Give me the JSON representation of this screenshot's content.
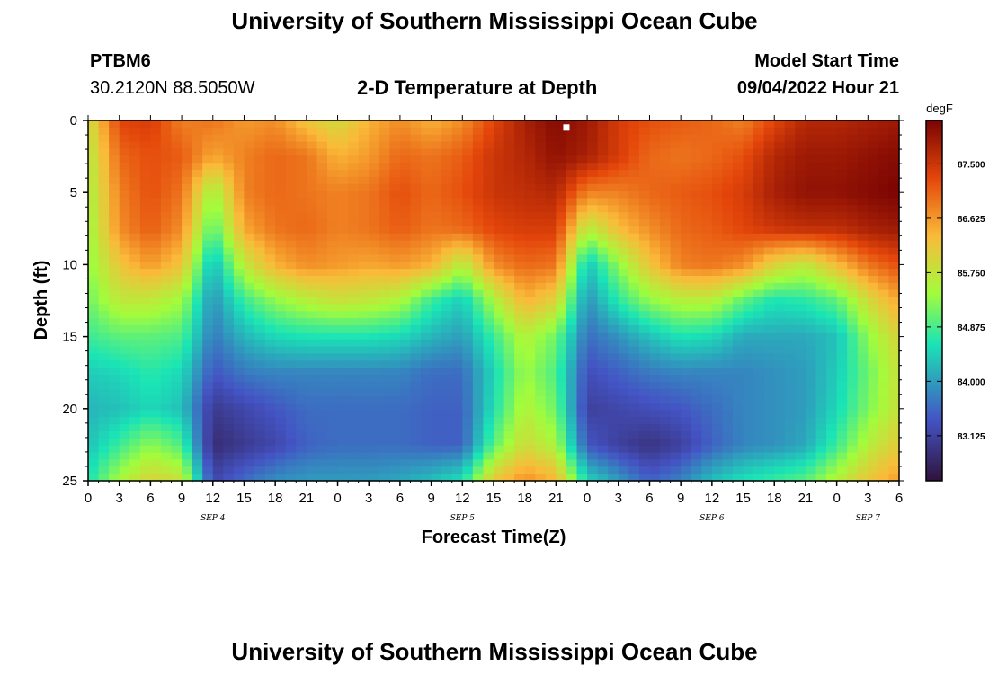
{
  "page": {
    "title": "University of Southern Mississippi Ocean Cube",
    "bottom_title": "University of Southern Mississippi Ocean Cube"
  },
  "station": {
    "id": "PTBM6",
    "coords": "30.2120N  88.5050W"
  },
  "chart_title": "2-D Temperature at Depth",
  "model": {
    "label": "Model Start Time",
    "value": "09/04/2022 Hour 21"
  },
  "colorbar": {
    "unit": "degF",
    "ticks": [
      "87.500",
      "86.625",
      "85.750",
      "84.875",
      "84.000",
      "83.125"
    ],
    "colors": {
      "dark_blue": "#30123b",
      "blue": "#4454c4",
      "cyan": "#1ae4b6",
      "green": "#a2fc3c",
      "yellow": "#faba39",
      "orange": "#e4460a",
      "dark_red": "#7a0403"
    }
  },
  "chart_data": {
    "type": "heatmap",
    "title": "2-D Temperature at Depth",
    "xlabel": "Forecast Time(Z)",
    "ylabel": "Depth (ft)",
    "unit": "degF",
    "xlim": [
      0,
      78
    ],
    "ylim": [
      0,
      25
    ],
    "value_range": [
      82.4,
      88.2
    ],
    "y_ticks": [
      "0",
      "5",
      "10",
      "15",
      "20",
      "25"
    ],
    "x_tick_labels": [
      "0",
      "3",
      "6",
      "9",
      "12",
      "15",
      "18",
      "21",
      "0",
      "3",
      "6",
      "9",
      "12",
      "15",
      "18",
      "21",
      "0",
      "3",
      "6",
      "9",
      "12",
      "15",
      "18",
      "21",
      "0",
      "3",
      "6"
    ],
    "date_labels": [
      {
        "label": "SEP 4",
        "hour": 12
      },
      {
        "label": "SEP 5",
        "hour": 36
      },
      {
        "label": "SEP 6",
        "hour": 60
      },
      {
        "label": "SEP 7",
        "hour": 75
      }
    ],
    "marker": {
      "hour": 46,
      "depth": 0.3
    },
    "hours": [
      0,
      3,
      6,
      9,
      12,
      15,
      18,
      21,
      24,
      27,
      30,
      33,
      36,
      39,
      42,
      45,
      48,
      51,
      54,
      57,
      60,
      63,
      66,
      69,
      72,
      75,
      78
    ],
    "depths": [
      0,
      2.5,
      5,
      7.5,
      10,
      12.5,
      15,
      17.5,
      20,
      22.5,
      25
    ],
    "grid_note": "rows = depths (ft), cols = hours since Sep 4 00Z; values degF (estimated)",
    "values": [
      [
        85.8,
        87.3,
        87.4,
        86.8,
        86.9,
        86.6,
        86.7,
        86.2,
        85.9,
        86.4,
        86.7,
        86.4,
        86.7,
        87.3,
        87.8,
        88.1,
        87.9,
        87.4,
        87.2,
        87.1,
        87.0,
        86.8,
        87.3,
        87.7,
        87.7,
        87.8,
        87.9
      ],
      [
        85.6,
        87.0,
        87.2,
        87.1,
        86.5,
        86.8,
        87.0,
        86.9,
        86.4,
        86.6,
        87.0,
        86.9,
        87.1,
        87.5,
        87.7,
        88.0,
        87.8,
        87.4,
        87.0,
        86.9,
        87.0,
        87.2,
        87.7,
        87.9,
        87.9,
        88.0,
        88.1
      ],
      [
        85.5,
        86.8,
        87.2,
        86.9,
        85.4,
        86.8,
        87.0,
        86.9,
        86.8,
        86.9,
        87.2,
        87.0,
        87.2,
        87.5,
        87.6,
        87.7,
        86.8,
        86.8,
        87.0,
        87.1,
        87.2,
        87.4,
        87.8,
        88.0,
        88.0,
        88.1,
        88.2
      ],
      [
        85.4,
        86.7,
        87.1,
        86.7,
        84.9,
        86.5,
        86.9,
        87.0,
        86.8,
        86.9,
        87.1,
        86.9,
        87.0,
        87.3,
        87.4,
        87.4,
        85.6,
        86.3,
        86.7,
        87.0,
        87.1,
        87.3,
        87.5,
        87.6,
        87.6,
        87.8,
        87.9
      ],
      [
        85.3,
        86.2,
        86.6,
        86.2,
        84.2,
        85.7,
        86.4,
        86.7,
        86.6,
        86.5,
        86.6,
        86.4,
        85.6,
        86.7,
        87.0,
        86.9,
        84.3,
        85.3,
        86.2,
        86.8,
        86.9,
        86.7,
        86.0,
        85.7,
        86.3,
        86.9,
        87.2
      ],
      [
        85.1,
        85.7,
        85.7,
        85.4,
        83.9,
        84.8,
        85.3,
        85.6,
        85.8,
        85.7,
        85.5,
        84.8,
        84.4,
        85.5,
        86.4,
        86.0,
        83.9,
        84.7,
        85.3,
        85.6,
        85.6,
        85.0,
        84.6,
        84.7,
        85.0,
        85.9,
        86.5
      ],
      [
        84.8,
        85.0,
        85.0,
        84.9,
        83.7,
        84.2,
        84.5,
        84.6,
        84.6,
        84.6,
        84.5,
        84.2,
        84.0,
        84.8,
        85.6,
        85.1,
        83.6,
        83.9,
        84.3,
        84.6,
        84.5,
        84.1,
        84.1,
        84.1,
        84.3,
        85.3,
        86.0
      ],
      [
        84.4,
        84.5,
        84.7,
        84.5,
        83.4,
        83.7,
        83.8,
        83.8,
        83.8,
        83.8,
        83.8,
        83.6,
        83.6,
        84.5,
        85.4,
        84.9,
        83.3,
        83.5,
        83.7,
        83.8,
        83.8,
        83.8,
        83.9,
        84.0,
        84.4,
        85.1,
        85.8
      ],
      [
        84.2,
        84.3,
        84.5,
        84.3,
        83.0,
        83.2,
        83.4,
        83.6,
        83.6,
        83.6,
        83.6,
        83.5,
        83.5,
        84.6,
        85.6,
        85.1,
        83.1,
        83.2,
        83.3,
        83.4,
        83.6,
        83.8,
        83.9,
        84.0,
        84.5,
        85.2,
        85.8
      ],
      [
        84.3,
        84.8,
        85.3,
        84.9,
        82.8,
        83.0,
        83.2,
        83.5,
        83.6,
        83.6,
        83.6,
        83.5,
        83.5,
        85.0,
        85.9,
        85.5,
        83.4,
        83.1,
        82.9,
        83.1,
        83.5,
        83.8,
        83.9,
        84.1,
        84.8,
        85.6,
        86.1
      ],
      [
        84.6,
        85.5,
        86.0,
        85.8,
        83.2,
        83.6,
        83.9,
        84.0,
        84.0,
        84.0,
        84.1,
        84.3,
        84.6,
        86.2,
        86.7,
        86.4,
        84.5,
        84.0,
        83.5,
        83.8,
        84.3,
        84.6,
        84.8,
        85.0,
        85.6,
        86.2,
        86.6
      ]
    ]
  }
}
